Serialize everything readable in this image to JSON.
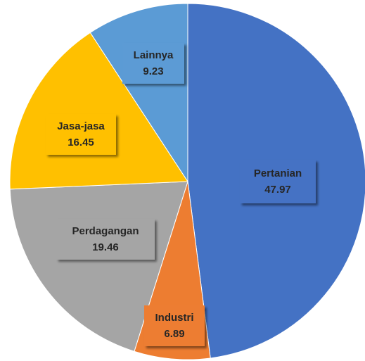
{
  "chart_data": {
    "type": "pie",
    "categories": [
      "Pertanian",
      "Industri",
      "Perdagangan",
      "Jasa-jasa",
      "Lainnya"
    ],
    "values": [
      47.97,
      6.89,
      19.46,
      16.45,
      9.23
    ],
    "colors": [
      "#4472c4",
      "#ed7d31",
      "#a5a5a5",
      "#ffc000",
      "#5b9bd5"
    ]
  }
}
